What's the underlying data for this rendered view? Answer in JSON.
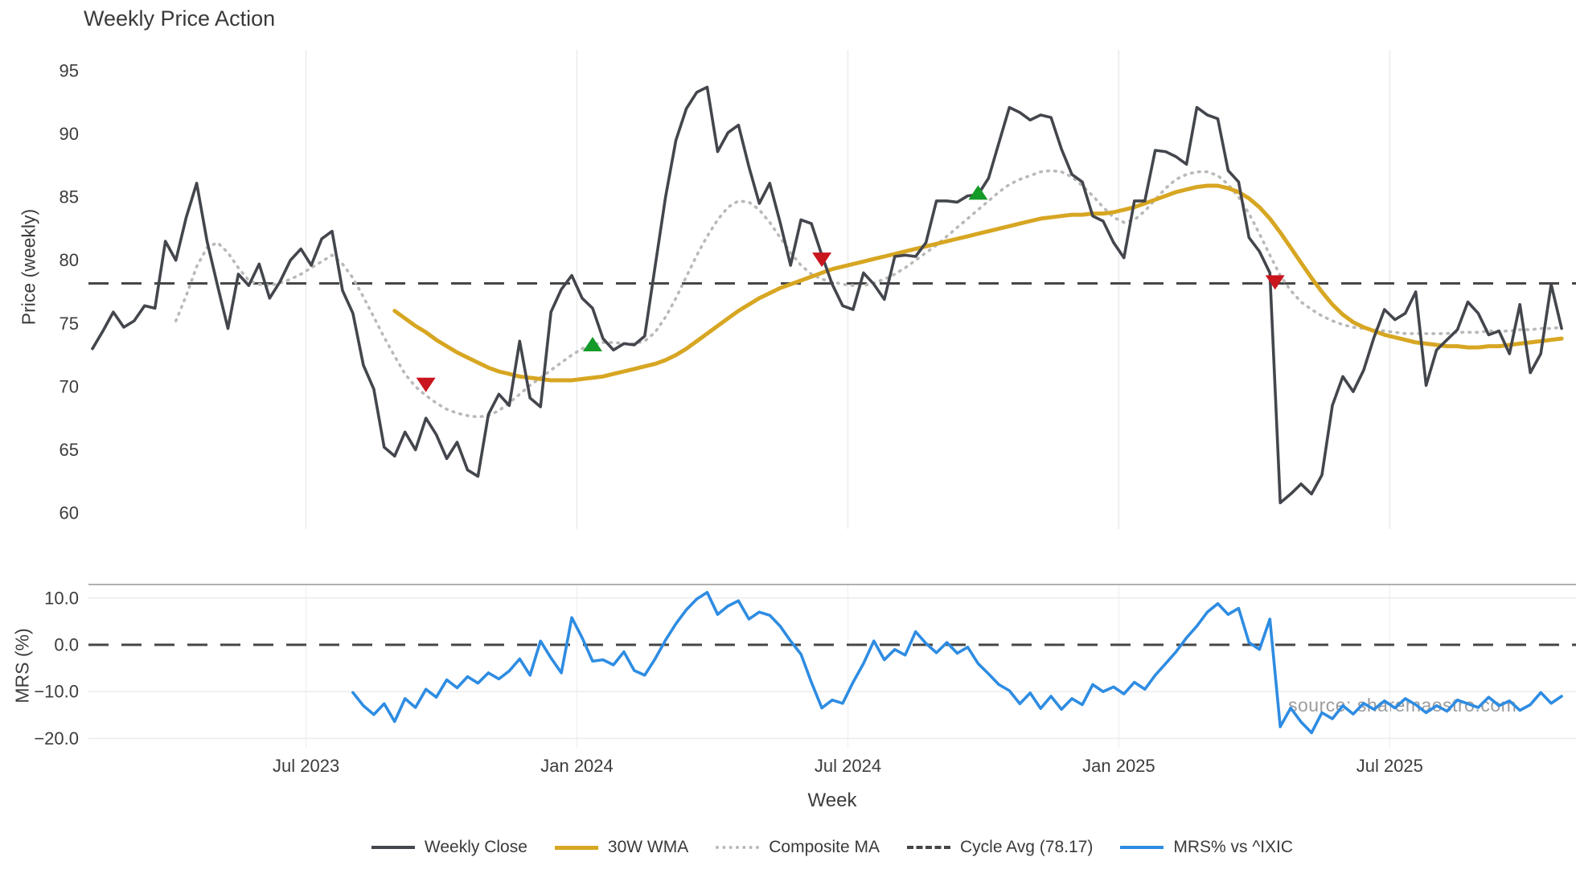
{
  "title": "Weekly Price Action",
  "xlabel": "Week",
  "watermark": "source: sharemaestro.com",
  "legend": [
    {
      "label": "Weekly Close"
    },
    {
      "label": "30W WMA"
    },
    {
      "label": "Composite MA"
    },
    {
      "label": "Cycle Avg (78.17)"
    },
    {
      "label": "MRS% vs ^IXIC"
    }
  ],
  "colors": {
    "close": "#43464c",
    "wma": "#d7a622",
    "composite": "#b9b9b9",
    "cycle": "#464646",
    "mrs": "#2e8ce2",
    "buy": "#149a27",
    "sell": "#c9151e",
    "grid": "#ececec",
    "grid_faint": "#f2f2f2",
    "spine": "#b0b0b0",
    "tick_text": "#3c3c3c"
  },
  "chart_data": [
    {
      "type": "line",
      "panel": "price",
      "title": "Weekly Price Action",
      "xlabel": "Week",
      "ylabel": "Price (weekly)",
      "ylim": [
        59.5,
        96.6
      ],
      "yticks": [
        95,
        90,
        85,
        80,
        75,
        70,
        65,
        60
      ],
      "x_unit": "week_index",
      "xticks": [
        {
          "week": 20.5,
          "label": "Jul 2023"
        },
        {
          "week": 46.5,
          "label": "Jan 2024"
        },
        {
          "week": 72.5,
          "label": "Jul 2024"
        },
        {
          "week": 98.5,
          "label": "Jan 2025"
        },
        {
          "week": 124.5,
          "label": "Jul 2025"
        }
      ],
      "cycle_avg": 78.17,
      "series": [
        {
          "name": "Weekly Close",
          "values": [
            73.0,
            74.4,
            75.9,
            74.7,
            75.2,
            76.4,
            76.2,
            81.5,
            80.0,
            83.4,
            86.1,
            81.5,
            78.0,
            74.6,
            78.9,
            78.0,
            79.7,
            77.0,
            78.3,
            80.0,
            80.9,
            79.6,
            81.7,
            82.3,
            77.6,
            75.8,
            71.7,
            69.8,
            65.2,
            64.5,
            66.4,
            65.0,
            67.5,
            66.2,
            64.3,
            65.6,
            63.4,
            62.9,
            67.8,
            69.4,
            68.5,
            73.6,
            69.1,
            68.4,
            75.9,
            77.7,
            78.8,
            77.0,
            76.2,
            73.8,
            72.9,
            73.4,
            73.3,
            74.0,
            79.5,
            85.0,
            89.5,
            92.0,
            93.3,
            93.7,
            88.6,
            90.1,
            90.7,
            87.4,
            84.5,
            86.1,
            83.0,
            79.6,
            83.2,
            82.9,
            80.4,
            78.1,
            76.4,
            76.1,
            79.0,
            78.1,
            76.9,
            80.3,
            80.4,
            80.3,
            81.4,
            84.7,
            84.7,
            84.6,
            85.1,
            85.2,
            86.5,
            89.3,
            92.1,
            91.7,
            91.1,
            91.5,
            91.3,
            88.8,
            86.8,
            86.2,
            83.5,
            83.1,
            81.4,
            80.2,
            84.7,
            84.7,
            88.7,
            88.6,
            88.2,
            87.6,
            92.1,
            91.5,
            91.2,
            87.1,
            86.2,
            81.8,
            80.7,
            79.0,
            60.8,
            61.5,
            62.3,
            61.5,
            63.0,
            68.5,
            70.8,
            69.6,
            71.3,
            73.9,
            76.1,
            75.3,
            75.8,
            77.5,
            70.1,
            72.9,
            73.7,
            74.5,
            76.7,
            75.8,
            74.1,
            74.4,
            72.6,
            76.5,
            71.1,
            72.6,
            78.1,
            74.6
          ]
        },
        {
          "name": "30W WMA",
          "values": [
            null,
            null,
            null,
            null,
            null,
            null,
            null,
            null,
            null,
            null,
            null,
            null,
            null,
            null,
            null,
            null,
            null,
            null,
            null,
            null,
            null,
            null,
            null,
            null,
            null,
            null,
            null,
            null,
            null,
            76.0,
            75.4,
            74.8,
            74.3,
            73.7,
            73.2,
            72.7,
            72.3,
            71.9,
            71.5,
            71.2,
            71.0,
            70.8,
            70.7,
            70.6,
            70.5,
            70.5,
            70.5,
            70.6,
            70.7,
            70.8,
            71.0,
            71.2,
            71.4,
            71.6,
            71.8,
            72.1,
            72.5,
            73.0,
            73.6,
            74.2,
            74.8,
            75.4,
            76.0,
            76.5,
            77.0,
            77.4,
            77.8,
            78.1,
            78.4,
            78.7,
            79.0,
            79.3,
            79.5,
            79.7,
            79.9,
            80.1,
            80.3,
            80.5,
            80.7,
            80.9,
            81.1,
            81.3,
            81.5,
            81.7,
            81.9,
            82.1,
            82.3,
            82.5,
            82.7,
            82.9,
            83.1,
            83.3,
            83.4,
            83.5,
            83.6,
            83.6,
            83.7,
            83.7,
            83.8,
            84.0,
            84.2,
            84.5,
            84.8,
            85.1,
            85.4,
            85.6,
            85.8,
            85.9,
            85.9,
            85.7,
            85.4,
            84.9,
            84.2,
            83.3,
            82.2,
            81.0,
            79.8,
            78.6,
            77.5,
            76.5,
            75.7,
            75.1,
            74.7,
            74.4,
            74.1,
            73.9,
            73.7,
            73.5,
            73.4,
            73.3,
            73.2,
            73.2,
            73.1,
            73.1,
            73.2,
            73.2,
            73.3,
            73.4,
            73.5,
            73.6,
            73.7,
            73.8
          ]
        },
        {
          "name": "Composite MA",
          "values": [
            null,
            null,
            null,
            null,
            null,
            null,
            null,
            null,
            75.2,
            77.2,
            79.5,
            81.0,
            81.4,
            80.6,
            79.4,
            78.4,
            78.1,
            78.0,
            78.2,
            78.5,
            78.9,
            79.4,
            79.9,
            80.4,
            79.7,
            78.6,
            77.1,
            75.5,
            73.9,
            72.4,
            71.0,
            70.0,
            69.3,
            68.7,
            68.2,
            67.9,
            67.7,
            67.6,
            67.7,
            68.1,
            68.7,
            69.4,
            70.1,
            70.7,
            71.3,
            71.9,
            72.5,
            73.0,
            73.3,
            73.5,
            73.5,
            73.4,
            73.4,
            73.6,
            74.3,
            75.5,
            77.0,
            78.7,
            80.4,
            81.9,
            83.2,
            84.2,
            84.7,
            84.6,
            84.0,
            83.0,
            81.8,
            80.6,
            79.6,
            78.9,
            78.5,
            78.3,
            78.1,
            78.0,
            78.0,
            78.2,
            78.5,
            78.9,
            79.4,
            80.0,
            80.6,
            81.2,
            81.9,
            82.6,
            83.3,
            84.0,
            84.7,
            85.4,
            86.0,
            86.4,
            86.7,
            87.0,
            87.1,
            87.0,
            86.6,
            85.9,
            85.1,
            84.2,
            83.4,
            83.0,
            83.2,
            83.9,
            84.8,
            85.7,
            86.4,
            86.8,
            87.0,
            87.0,
            86.7,
            86.0,
            85.0,
            83.7,
            82.1,
            80.4,
            78.8,
            77.6,
            76.7,
            76.1,
            75.6,
            75.2,
            74.9,
            74.7,
            74.6,
            74.5,
            74.4,
            74.3,
            74.2,
            74.2,
            74.2,
            74.2,
            74.2,
            74.3,
            74.3,
            74.3,
            74.4,
            74.4,
            74.4,
            74.5,
            74.5,
            74.6,
            74.6,
            74.7
          ]
        }
      ],
      "markers": {
        "sell": [
          {
            "week": 32,
            "price": 70.2
          },
          {
            "week": 70,
            "price": 80.1
          },
          {
            "week": 113.5,
            "price": 78.3
          }
        ],
        "buy": [
          {
            "week": 48,
            "price": 73.3
          },
          {
            "week": 85,
            "price": 85.3
          }
        ]
      }
    },
    {
      "type": "line",
      "panel": "mrs",
      "ylabel": "MRS (%)",
      "ylim": [
        -21.5,
        12.9
      ],
      "yticks": [
        {
          "v": 10,
          "label": "10.0"
        },
        {
          "v": 0,
          "label": "0.0"
        },
        {
          "v": -10,
          "label": "−10.0"
        },
        {
          "v": -20,
          "label": "−20.0"
        }
      ],
      "zero_line": 0,
      "grid_values": [
        10,
        -10,
        -20
      ],
      "series": [
        {
          "name": "MRS% vs ^IXIC",
          "values": [
            null,
            null,
            null,
            null,
            null,
            null,
            null,
            null,
            null,
            null,
            null,
            null,
            null,
            null,
            null,
            null,
            null,
            null,
            null,
            null,
            null,
            null,
            null,
            null,
            null,
            -10.2,
            -13.0,
            -14.9,
            -12.6,
            -16.4,
            -11.5,
            -13.4,
            -9.5,
            -11.2,
            -7.5,
            -9.2,
            -6.8,
            -8.2,
            -6.0,
            -7.3,
            -5.6,
            -3.0,
            -6.5,
            0.8,
            -2.8,
            -6.0,
            5.8,
            1.5,
            -3.5,
            -3.2,
            -4.3,
            -1.5,
            -5.5,
            -6.5,
            -3.0,
            1.0,
            4.5,
            7.5,
            9.8,
            11.2,
            6.5,
            8.3,
            9.4,
            5.5,
            7.0,
            6.3,
            4.0,
            0.8,
            -2.0,
            -8.0,
            -13.5,
            -11.8,
            -12.5,
            -8.0,
            -4.0,
            0.8,
            -3.2,
            -1.0,
            -2.2,
            2.8,
            0.3,
            -1.7,
            0.5,
            -1.8,
            -0.5,
            -4.0,
            -6.2,
            -8.5,
            -9.8,
            -12.6,
            -10.3,
            -13.6,
            -11.0,
            -13.8,
            -11.5,
            -12.8,
            -8.5,
            -10.0,
            -9.0,
            -10.5,
            -8.0,
            -9.5,
            -6.5,
            -4.0,
            -1.5,
            1.5,
            4.0,
            7.0,
            8.8,
            6.5,
            7.8,
            0.5,
            -1.0,
            5.5,
            -17.5,
            -13.5,
            -16.5,
            -18.8,
            -14.5,
            -15.8,
            -13.0,
            -14.8,
            -12.5,
            -13.8,
            -12.0,
            -13.5,
            -11.5,
            -12.8,
            -14.5,
            -13.0,
            -14.2,
            -11.8,
            -12.6,
            -13.4,
            -11.2,
            -13.0,
            -12.0,
            -14.0,
            -12.8,
            -10.2,
            -12.5,
            -11.0
          ]
        }
      ]
    }
  ]
}
